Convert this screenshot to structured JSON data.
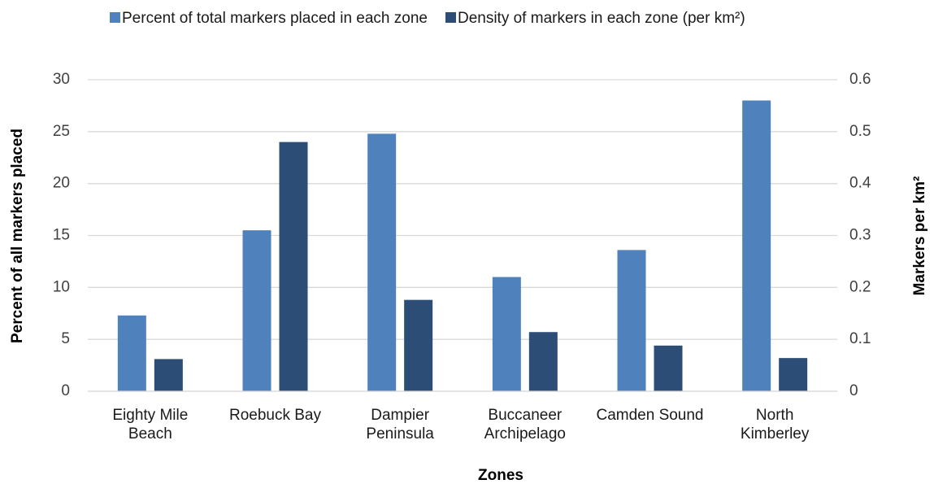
{
  "chart_data": {
    "type": "bar",
    "x_label": "Zones",
    "y_label": "Percent of all markers placed",
    "y2_label": "Markers per km²",
    "categories": [
      "Eighty Mile\nBeach",
      "Roebuck Bay",
      "Dampier\nPeninsula",
      "Buccaneer\nArchipelago",
      "Camden Sound",
      "North\nKimberley"
    ],
    "series": [
      {
        "name": "Percent of total markers placed in each zone",
        "color": "#4f81bd",
        "values": [
          7.3,
          15.5,
          24.8,
          11.0,
          13.6,
          28.0
        ]
      },
      {
        "name": "Density of markers in each zone (per km²)",
        "color": "#2c4d75",
        "axis": "y2",
        "values": [
          0.062,
          0.48,
          0.176,
          0.114,
          0.088,
          0.064
        ]
      }
    ],
    "ylim": [
      0,
      30
    ],
    "yticks": [
      0,
      5,
      10,
      15,
      20,
      25,
      30
    ],
    "y2lim": [
      0,
      0.6
    ],
    "y2ticks": [
      0,
      0.1,
      0.2,
      0.3,
      0.4,
      0.5,
      0.6
    ],
    "grid": true,
    "legend": "top"
  }
}
